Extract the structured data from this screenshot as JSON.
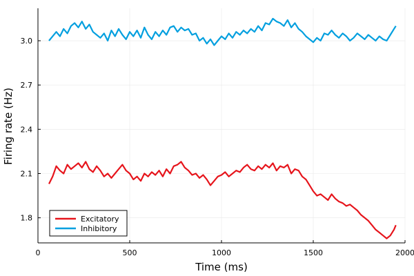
{
  "chart_data": {
    "type": "line",
    "title": "",
    "xlabel": "Time (ms)",
    "ylabel": "Firing rate (Hz)",
    "xlim": [
      0,
      2000
    ],
    "ylim": [
      1.63,
      3.22
    ],
    "xticks": [
      0,
      500,
      1000,
      1500,
      2000
    ],
    "yticks": [
      1.8,
      2.1,
      2.4,
      2.7,
      3.0
    ],
    "ytick_labels": [
      "1.8",
      "2.1",
      "2.4",
      "2.7",
      "3.0"
    ],
    "grid": true,
    "legend_position": "bottom-left",
    "series": [
      {
        "name": "Excitatory",
        "color": "#e6141b",
        "x": [
          60,
          80,
          100,
          120,
          140,
          160,
          180,
          200,
          220,
          240,
          260,
          280,
          300,
          320,
          340,
          360,
          380,
          400,
          420,
          440,
          460,
          480,
          500,
          520,
          540,
          560,
          580,
          600,
          620,
          640,
          660,
          680,
          700,
          720,
          740,
          760,
          780,
          800,
          820,
          840,
          860,
          880,
          900,
          920,
          940,
          960,
          980,
          1000,
          1020,
          1040,
          1060,
          1080,
          1100,
          1120,
          1140,
          1160,
          1180,
          1200,
          1220,
          1240,
          1260,
          1280,
          1300,
          1320,
          1340,
          1360,
          1380,
          1400,
          1420,
          1440,
          1460,
          1480,
          1500,
          1520,
          1540,
          1560,
          1580,
          1600,
          1620,
          1640,
          1660,
          1680,
          1700,
          1720,
          1740,
          1760,
          1780,
          1800,
          1820,
          1840,
          1860,
          1880,
          1900,
          1920,
          1940,
          1950
        ],
        "y": [
          2.03,
          2.08,
          2.15,
          2.12,
          2.1,
          2.16,
          2.13,
          2.15,
          2.17,
          2.14,
          2.18,
          2.13,
          2.11,
          2.15,
          2.12,
          2.08,
          2.1,
          2.07,
          2.1,
          2.13,
          2.16,
          2.12,
          2.1,
          2.06,
          2.08,
          2.05,
          2.1,
          2.08,
          2.11,
          2.09,
          2.12,
          2.08,
          2.13,
          2.1,
          2.15,
          2.16,
          2.18,
          2.14,
          2.12,
          2.09,
          2.1,
          2.07,
          2.09,
          2.06,
          2.02,
          2.05,
          2.08,
          2.09,
          2.11,
          2.08,
          2.1,
          2.12,
          2.11,
          2.14,
          2.16,
          2.13,
          2.12,
          2.15,
          2.13,
          2.16,
          2.14,
          2.17,
          2.12,
          2.15,
          2.14,
          2.16,
          2.1,
          2.13,
          2.12,
          2.08,
          2.06,
          2.02,
          1.98,
          1.95,
          1.96,
          1.94,
          1.92,
          1.96,
          1.93,
          1.91,
          1.9,
          1.88,
          1.89,
          1.87,
          1.85,
          1.82,
          1.8,
          1.78,
          1.75,
          1.72,
          1.7,
          1.68,
          1.66,
          1.68,
          1.72,
          1.75
        ]
      },
      {
        "name": "Inhibitory",
        "color": "#009fdf",
        "x": [
          60,
          80,
          100,
          120,
          140,
          160,
          180,
          200,
          220,
          240,
          260,
          280,
          300,
          320,
          340,
          360,
          380,
          400,
          420,
          440,
          460,
          480,
          500,
          520,
          540,
          560,
          580,
          600,
          620,
          640,
          660,
          680,
          700,
          720,
          740,
          760,
          780,
          800,
          820,
          840,
          860,
          880,
          900,
          920,
          940,
          960,
          980,
          1000,
          1020,
          1040,
          1060,
          1080,
          1100,
          1120,
          1140,
          1160,
          1180,
          1200,
          1220,
          1240,
          1260,
          1280,
          1300,
          1320,
          1340,
          1360,
          1380,
          1400,
          1420,
          1440,
          1460,
          1480,
          1500,
          1520,
          1540,
          1560,
          1580,
          1600,
          1620,
          1640,
          1660,
          1680,
          1700,
          1720,
          1740,
          1760,
          1780,
          1800,
          1820,
          1840,
          1860,
          1880,
          1900,
          1920,
          1940,
          1950
        ],
        "y": [
          3.0,
          3.03,
          3.06,
          3.03,
          3.08,
          3.05,
          3.1,
          3.12,
          3.09,
          3.13,
          3.08,
          3.11,
          3.06,
          3.04,
          3.02,
          3.05,
          3.0,
          3.07,
          3.03,
          3.08,
          3.04,
          3.01,
          3.06,
          3.03,
          3.07,
          3.02,
          3.09,
          3.04,
          3.01,
          3.06,
          3.03,
          3.07,
          3.04,
          3.09,
          3.1,
          3.06,
          3.09,
          3.07,
          3.08,
          3.04,
          3.05,
          3.0,
          3.02,
          2.98,
          3.01,
          2.97,
          3.0,
          3.03,
          3.01,
          3.05,
          3.02,
          3.06,
          3.04,
          3.07,
          3.05,
          3.08,
          3.06,
          3.1,
          3.07,
          3.12,
          3.11,
          3.15,
          3.13,
          3.12,
          3.1,
          3.14,
          3.09,
          3.12,
          3.08,
          3.06,
          3.03,
          3.01,
          2.99,
          3.02,
          3.0,
          3.05,
          3.04,
          3.07,
          3.04,
          3.02,
          3.05,
          3.03,
          3.0,
          3.02,
          3.05,
          3.03,
          3.01,
          3.04,
          3.02,
          3.0,
          3.03,
          3.01,
          3.0,
          3.04,
          3.08,
          3.1
        ]
      }
    ]
  }
}
